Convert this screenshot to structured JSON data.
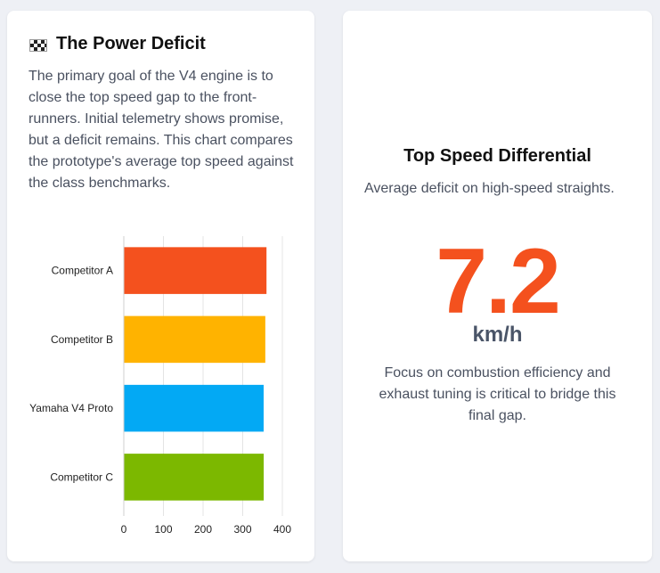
{
  "left_card": {
    "title": "The Power Deficit",
    "icon": "checkered-flag-icon",
    "description": "The primary goal of the V4 engine is to close the top speed gap to the front-runners. Initial telemetry shows promise, but a deficit remains. This chart compares the prototype's average top speed against the class benchmarks."
  },
  "right_card": {
    "title": "Top Speed Differential",
    "subtitle": "Average deficit on high-speed straights.",
    "value": "7.2",
    "unit": "km/h",
    "note": "Focus on combustion efficiency and exhaust tuning is critical to bridge this final gap.",
    "accent_color": "#f4511e"
  },
  "chart_data": {
    "type": "bar",
    "orientation": "horizontal",
    "categories": [
      "Competitor A",
      "Competitor B",
      "Yamaha V4 Proto",
      "Competitor C"
    ],
    "values": [
      360,
      357,
      352.8,
      353
    ],
    "colors": [
      "#f4511e",
      "#ffb300",
      "#03a9f4",
      "#7cb800"
    ],
    "xlim": [
      0,
      400
    ],
    "xticks": [
      0,
      100,
      200,
      300,
      400
    ],
    "grid": true,
    "legend": false,
    "title": "",
    "xlabel": "",
    "ylabel": ""
  }
}
